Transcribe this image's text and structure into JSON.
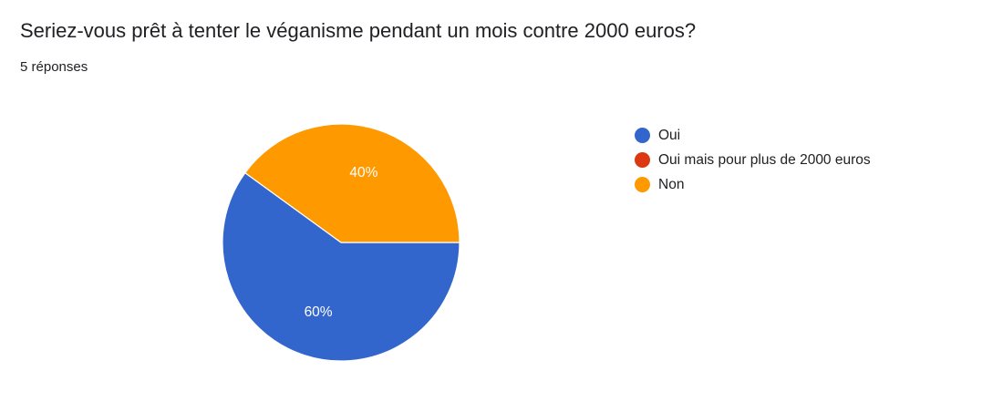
{
  "header": {
    "question": "Seriez-vous prêt à tenter le véganisme pendant un mois contre 2000 euros?",
    "response_count": "5 réponses"
  },
  "chart_data": {
    "type": "pie",
    "title": "Seriez-vous prêt à tenter le véganisme pendant un mois contre 2000 euros?",
    "legend_position": "right",
    "slices": [
      {
        "label": "Oui",
        "value": 3,
        "percent": 60,
        "percent_label": "60%",
        "color": "#3366cc"
      },
      {
        "label": "Oui mais pour plus de 2000 euros",
        "value": 0,
        "percent": 0,
        "percent_label": "",
        "color": "#dc3912"
      },
      {
        "label": "Non",
        "value": 2,
        "percent": 40,
        "percent_label": "40%",
        "color": "#ff9900"
      }
    ]
  }
}
